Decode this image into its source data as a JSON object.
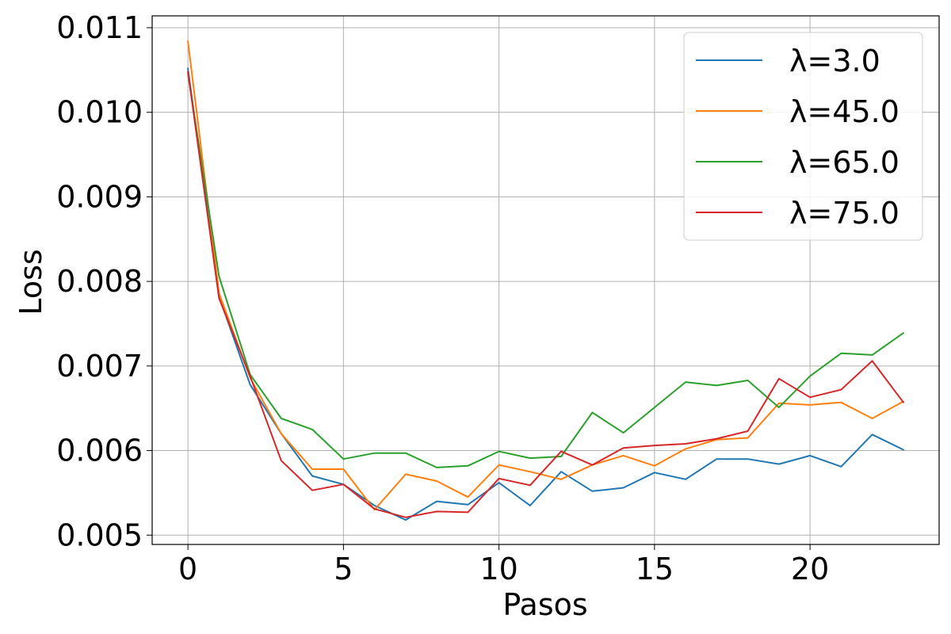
{
  "chart_data": {
    "type": "line",
    "title": "",
    "xlabel": "Pasos",
    "ylabel": "Loss",
    "xlim": [
      -1.15,
      24.15
    ],
    "ylim": [
      0.00489,
      0.01114
    ],
    "xticks": [
      0,
      5,
      10,
      15,
      20
    ],
    "yticks": [
      0.005,
      0.006,
      0.007,
      0.008,
      0.009,
      0.01,
      0.011
    ],
    "ytick_labels": [
      "0.005",
      "0.006",
      "0.007",
      "0.008",
      "0.009",
      "0.010",
      "0.011"
    ],
    "grid": true,
    "legend_position": "top-right",
    "x": [
      0,
      1,
      2,
      3,
      4,
      5,
      6,
      7,
      8,
      9,
      10,
      11,
      12,
      13,
      14,
      15,
      16,
      17,
      18,
      19,
      20,
      21,
      22,
      23
    ],
    "series": [
      {
        "name": "λ=3.0",
        "color": "#1f77b4",
        "values": [
          0.01052,
          0.00782,
          0.00678,
          0.0062,
          0.0057,
          0.0056,
          0.00535,
          0.00518,
          0.0054,
          0.00536,
          0.00562,
          0.00535,
          0.00575,
          0.00552,
          0.00556,
          0.00574,
          0.00566,
          0.0059,
          0.0059,
          0.00584,
          0.00594,
          0.00581,
          0.00619,
          0.00601
        ]
      },
      {
        "name": "λ=45.0",
        "color": "#ff7f0e",
        "values": [
          0.01084,
          0.00786,
          0.00686,
          0.0062,
          0.00578,
          0.00578,
          0.0053,
          0.00572,
          0.00564,
          0.00545,
          0.00583,
          0.00575,
          0.00566,
          0.00583,
          0.00594,
          0.00582,
          0.00602,
          0.00613,
          0.00615,
          0.00656,
          0.00654,
          0.00657,
          0.00638,
          0.00658
        ]
      },
      {
        "name": "λ=65.0",
        "color": "#2ca02c",
        "values": [
          0.01046,
          0.00806,
          0.0069,
          0.00638,
          0.00625,
          0.0059,
          0.00597,
          0.00597,
          0.0058,
          0.00582,
          0.00599,
          0.00591,
          0.00593,
          0.00645,
          0.00621,
          0.00651,
          0.00681,
          0.00677,
          0.00683,
          0.00651,
          0.00688,
          0.00715,
          0.00713,
          0.00739
        ]
      },
      {
        "name": "λ=75.0",
        "color": "#d62728",
        "values": [
          0.01048,
          0.0078,
          0.00688,
          0.00588,
          0.00553,
          0.0056,
          0.00531,
          0.00521,
          0.00528,
          0.00527,
          0.00567,
          0.00559,
          0.00599,
          0.00583,
          0.00603,
          0.00606,
          0.00608,
          0.00614,
          0.00623,
          0.00685,
          0.00663,
          0.00672,
          0.00706,
          0.00657
        ]
      }
    ]
  }
}
